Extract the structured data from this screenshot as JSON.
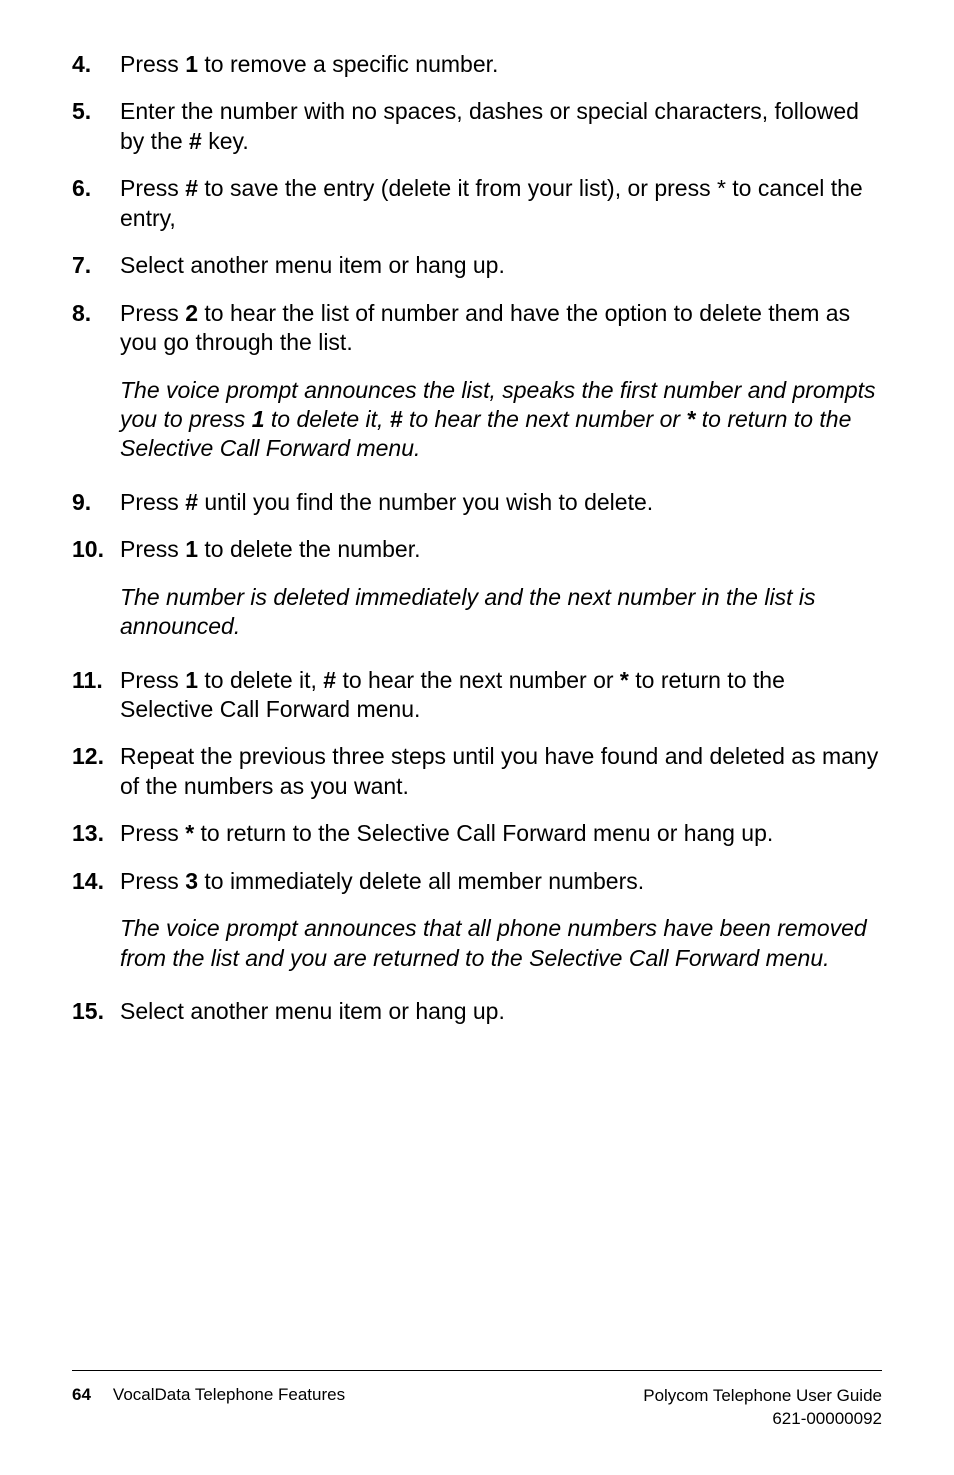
{
  "items": [
    {
      "num": "4.",
      "html": "Press <span class='b'>1</span> to remove a specific number."
    },
    {
      "num": "5.",
      "html": "Enter the number with no spaces, dashes or special characters, followed by the <span class='b'>#</span> key."
    },
    {
      "num": "6.",
      "html": "Press <span class='b'>#</span> to save the entry (delete it from your list), or press * to cancel the entry,"
    },
    {
      "num": "7.",
      "html": "Select another menu item or hang up."
    },
    {
      "num": "8.",
      "html": "Press <span class='b'>2</span> to hear the list of number and have the option to delete them as you go through the list.",
      "note": "The voice prompt announces the list, speaks the first number and prompts you to press <span class='b'>1</span> to delete it, <span class='b'>#</span> to hear the next number or <span class='b'>*</span> to return to the Selective Call Forward menu."
    },
    {
      "num": "9.",
      "html": "Press <span class='b'>#</span> until you find the number you wish to delete."
    },
    {
      "num": "10.",
      "html": "Press <span class='b'>1</span> to delete the number.",
      "note": "The number is deleted immediately and the next number in the list is announced."
    },
    {
      "num": "11.",
      "html": "Press <span class='b'>1</span> to delete it, <span class='b'>#</span> to hear the next number or <span class='b'>*</span> to return to the Selective Call Forward menu."
    },
    {
      "num": "12.",
      "html": "Repeat the previous three steps until you have found and deleted as many of the numbers as you want."
    },
    {
      "num": "13.",
      "html": "Press <span class='b'>*</span> to return to the Selective Call Forward menu or hang up."
    },
    {
      "num": "14.",
      "html": "Press <span class='b'>3</span> to immediately delete all member numbers.",
      "note": "The voice prompt announces that all phone numbers have been removed from the list and you are returned to the Selective Call Forward menu."
    },
    {
      "num": "15.",
      "html": "Select another menu item or hang up."
    }
  ],
  "footer": {
    "page": "64",
    "left": "VocalData Telephone Features",
    "right1": "Polycom Telephone User Guide",
    "right2": "621-00000092"
  }
}
